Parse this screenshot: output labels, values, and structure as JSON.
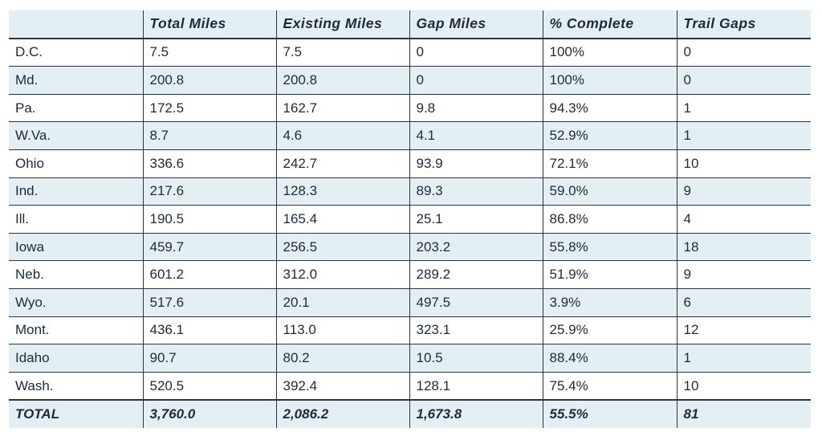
{
  "chart_data": {
    "type": "table",
    "columns": [
      "",
      "Total Miles",
      "Existing Miles",
      "Gap Miles",
      "% Complete",
      "Trail Gaps"
    ],
    "rows": [
      [
        "D.C.",
        "7.5",
        "7.5",
        "0",
        "100%",
        "0"
      ],
      [
        "Md.",
        "200.8",
        "200.8",
        "0",
        "100%",
        "0"
      ],
      [
        "Pa.",
        "172.5",
        "162.7",
        "9.8",
        "94.3%",
        "1"
      ],
      [
        "W.Va.",
        "8.7",
        "4.6",
        "4.1",
        "52.9%",
        "1"
      ],
      [
        "Ohio",
        "336.6",
        "242.7",
        "93.9",
        "72.1%",
        "10"
      ],
      [
        "Ind.",
        "217.6",
        "128.3",
        "89.3",
        "59.0%",
        "9"
      ],
      [
        "Ill.",
        "190.5",
        "165.4",
        "25.1",
        "86.8%",
        "4"
      ],
      [
        "Iowa",
        "459.7",
        "256.5",
        "203.2",
        "55.8%",
        "18"
      ],
      [
        "Neb.",
        "601.2",
        "312.0",
        "289.2",
        "51.9%",
        "9"
      ],
      [
        "Wyo.",
        "517.6",
        "20.1",
        "497.5",
        "3.9%",
        "6"
      ],
      [
        "Mont.",
        "436.1",
        "113.0",
        "323.1",
        "25.9%",
        "12"
      ],
      [
        "Idaho",
        "90.7",
        "80.2",
        "10.5",
        "88.4%",
        "1"
      ],
      [
        "Wash.",
        "520.5",
        "392.4",
        "128.1",
        "75.4%",
        "10"
      ]
    ],
    "total": [
      "TOTAL",
      "3,760.0",
      "2,086.2",
      "1,673.8",
      "55.5%",
      "81"
    ],
    "shade_color": "#e4eff3",
    "rule_color": "#2a3442",
    "text_color": "#1d2a3a"
  }
}
